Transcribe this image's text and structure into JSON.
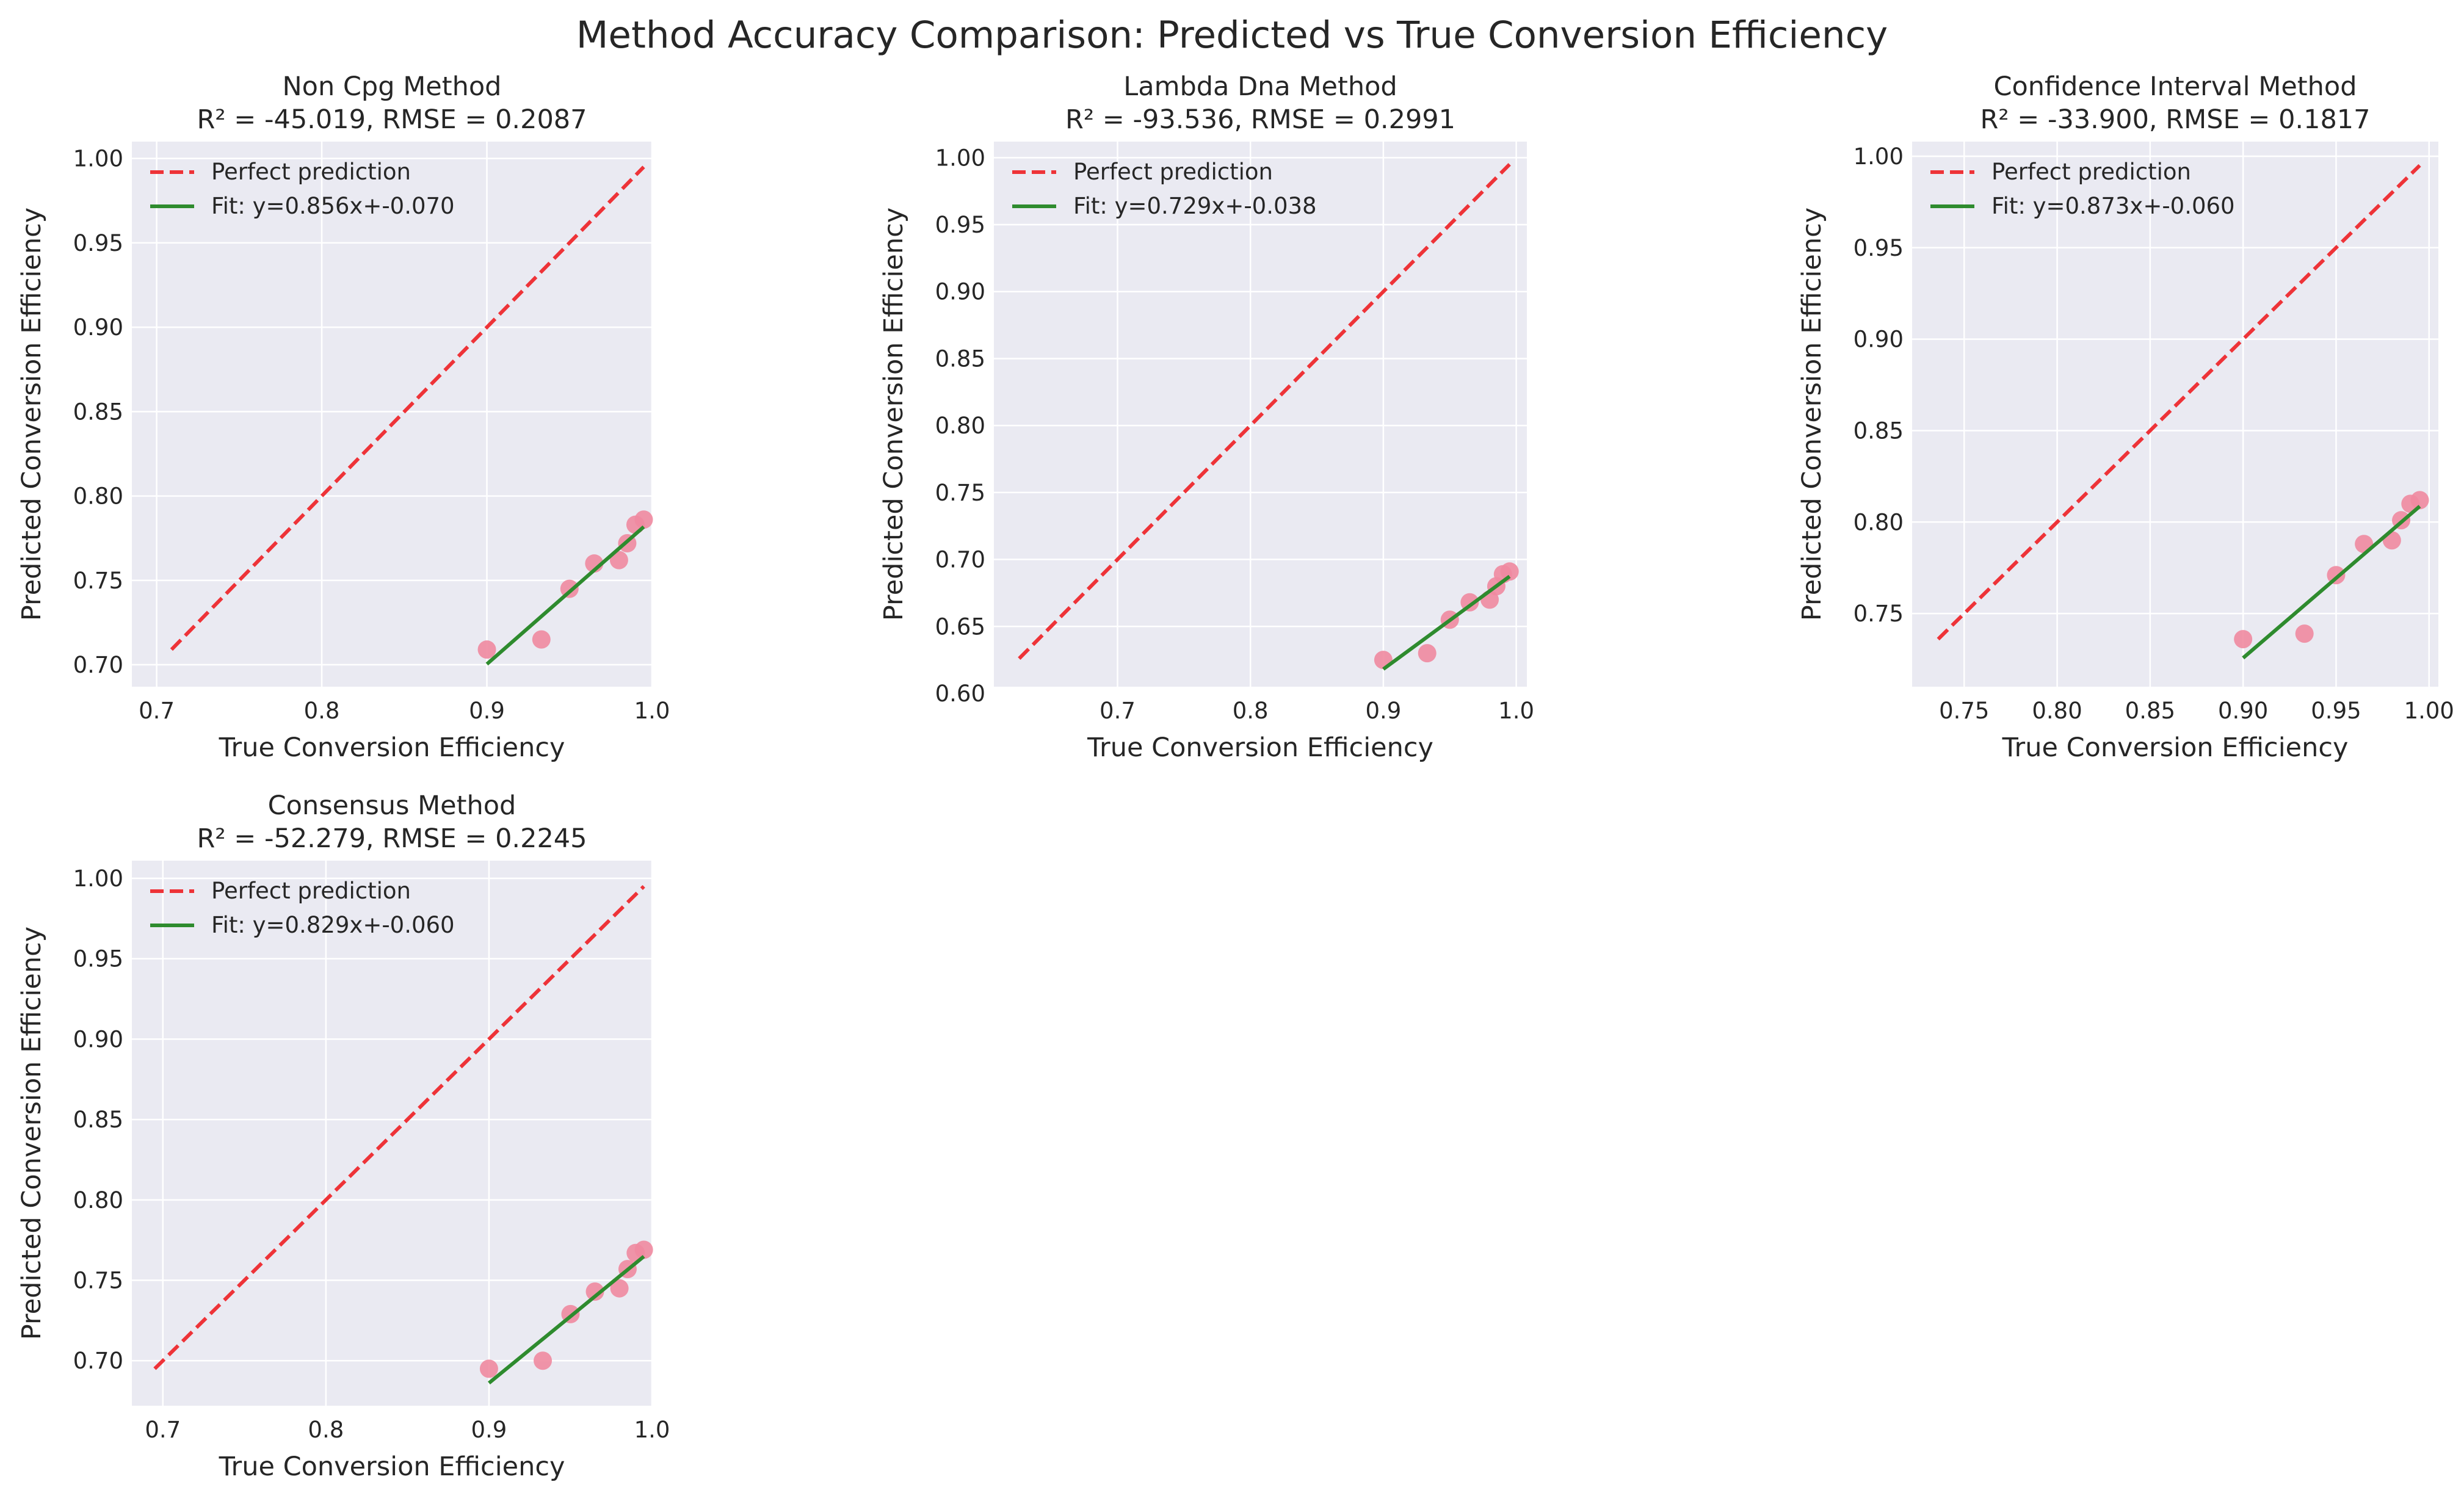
{
  "title": "Method Accuracy Comparison: Predicted vs True Conversion Efficiency",
  "colors": {
    "axes_background": "#eaeaf2",
    "perfect_line": "#ee3338",
    "fit_line": "#2e8b2e",
    "points": "#f08aa0"
  },
  "chart_data": [
    {
      "type": "scatter",
      "title": "Non Cpg Method",
      "subtitle": "R² = -45.019, RMSE = 0.2087",
      "xlabel": "True Conversion Efficiency",
      "ylabel": "Predicted Conversion Efficiency",
      "xlim": [
        0.685,
        1.0
      ],
      "ylim": [
        0.687,
        1.01
      ],
      "xticks": [
        0.7,
        0.8,
        0.9,
        1.0
      ],
      "xtick_labels": [
        "0.7",
        "0.8",
        "0.9",
        "1.0"
      ],
      "yticks": [
        0.7,
        0.75,
        0.8,
        0.85,
        0.9,
        0.95,
        1.0
      ],
      "ytick_labels": [
        "0.70",
        "0.75",
        "0.80",
        "0.85",
        "0.90",
        "0.95",
        "1.00"
      ],
      "grid": true,
      "legend_position": "top-left",
      "legend": [
        "Perfect prediction",
        "Fit: y=0.856x+-0.070"
      ],
      "perfect_line": {
        "x": [
          0.709,
          0.995
        ],
        "y": [
          0.709,
          0.995
        ]
      },
      "fit_line": {
        "slope": 0.856,
        "intercept": -0.07,
        "x_range": [
          0.9,
          0.995
        ]
      },
      "points": {
        "x": [
          0.9,
          0.933,
          0.95,
          0.965,
          0.98,
          0.985,
          0.99,
          0.995
        ],
        "y": [
          0.709,
          0.715,
          0.745,
          0.76,
          0.762,
          0.772,
          0.783,
          0.786
        ]
      }
    },
    {
      "type": "scatter",
      "title": "Lambda Dna Method",
      "subtitle": "R² = -93.536, RMSE = 0.2991",
      "xlabel": "True Conversion Efficiency",
      "ylabel": "Predicted Conversion Efficiency",
      "xlim": [
        0.607,
        1.008
      ],
      "ylim": [
        0.605,
        1.012
      ],
      "xticks": [
        0.7,
        0.8,
        0.9,
        1.0
      ],
      "xtick_labels": [
        "0.7",
        "0.8",
        "0.9",
        "1.0"
      ],
      "yticks": [
        0.6,
        0.65,
        0.7,
        0.75,
        0.8,
        0.85,
        0.9,
        0.95,
        1.0
      ],
      "ytick_labels": [
        "0.60",
        "0.65",
        "0.70",
        "0.75",
        "0.80",
        "0.85",
        "0.90",
        "0.95",
        "1.00"
      ],
      "grid": true,
      "legend_position": "top-left",
      "legend": [
        "Perfect prediction",
        "Fit: y=0.729x+-0.038"
      ],
      "perfect_line": {
        "x": [
          0.626,
          0.995
        ],
        "y": [
          0.626,
          0.995
        ]
      },
      "fit_line": {
        "slope": 0.729,
        "intercept": -0.038,
        "x_range": [
          0.9,
          0.995
        ]
      },
      "points": {
        "x": [
          0.9,
          0.933,
          0.95,
          0.965,
          0.98,
          0.985,
          0.99,
          0.995
        ],
        "y": [
          0.625,
          0.63,
          0.655,
          0.668,
          0.67,
          0.68,
          0.689,
          0.691
        ]
      }
    },
    {
      "type": "scatter",
      "title": "Confidence Interval Method",
      "subtitle": "R² = -33.900, RMSE = 0.1817",
      "xlabel": "True Conversion Efficiency",
      "ylabel": "Predicted Conversion Efficiency",
      "xlim": [
        0.722,
        1.005
      ],
      "ylim": [
        0.71,
        1.008
      ],
      "xticks": [
        0.75,
        0.8,
        0.85,
        0.9,
        0.95,
        1.0
      ],
      "xtick_labels": [
        "0.75",
        "0.80",
        "0.85",
        "0.90",
        "0.95",
        "1.00"
      ],
      "yticks": [
        0.75,
        0.8,
        0.85,
        0.9,
        0.95,
        1.0
      ],
      "ytick_labels": [
        "0.75",
        "0.80",
        "0.85",
        "0.90",
        "0.95",
        "1.00"
      ],
      "grid": true,
      "legend_position": "top-left",
      "legend": [
        "Perfect prediction",
        "Fit: y=0.873x+-0.060"
      ],
      "perfect_line": {
        "x": [
          0.736,
          0.995
        ],
        "y": [
          0.736,
          0.995
        ]
      },
      "fit_line": {
        "slope": 0.873,
        "intercept": -0.06,
        "x_range": [
          0.9,
          0.995
        ]
      },
      "points": {
        "x": [
          0.9,
          0.933,
          0.95,
          0.965,
          0.98,
          0.985,
          0.99,
          0.995
        ],
        "y": [
          0.736,
          0.739,
          0.771,
          0.788,
          0.79,
          0.801,
          0.81,
          0.812
        ]
      }
    },
    {
      "type": "scatter",
      "title": "Consensus Method",
      "subtitle": "R² = -52.279, RMSE = 0.2245",
      "xlabel": "True Conversion Efficiency",
      "ylabel": "Predicted Conversion Efficiency",
      "xlim": [
        0.681,
        1.0
      ],
      "ylim": [
        0.672,
        1.011
      ],
      "xticks": [
        0.7,
        0.8,
        0.9,
        1.0
      ],
      "xtick_labels": [
        "0.7",
        "0.8",
        "0.9",
        "1.0"
      ],
      "yticks": [
        0.7,
        0.75,
        0.8,
        0.85,
        0.9,
        0.95,
        1.0
      ],
      "ytick_labels": [
        "0.70",
        "0.75",
        "0.80",
        "0.85",
        "0.90",
        "0.95",
        "1.00"
      ],
      "grid": true,
      "legend_position": "top-left",
      "legend": [
        "Perfect prediction",
        "Fit: y=0.829x+-0.060"
      ],
      "perfect_line": {
        "x": [
          0.695,
          0.995
        ],
        "y": [
          0.695,
          0.995
        ]
      },
      "fit_line": {
        "slope": 0.829,
        "intercept": -0.06,
        "x_range": [
          0.9,
          0.995
        ]
      },
      "points": {
        "x": [
          0.9,
          0.933,
          0.95,
          0.965,
          0.98,
          0.985,
          0.99,
          0.995
        ],
        "y": [
          0.695,
          0.7,
          0.729,
          0.743,
          0.745,
          0.757,
          0.767,
          0.769
        ]
      }
    }
  ]
}
